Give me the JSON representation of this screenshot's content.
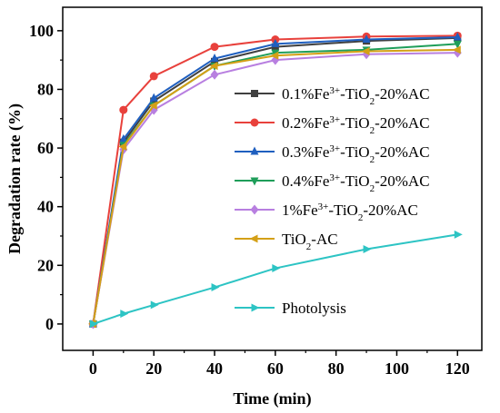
{
  "chart_data": {
    "type": "line",
    "xlabel": "Time (min)",
    "ylabel": "Degradation rate (%)",
    "xlim": [
      -10,
      128
    ],
    "ylim": [
      -9,
      108
    ],
    "xticks": [
      0,
      20,
      40,
      60,
      80,
      100,
      120
    ],
    "yticks": [
      0,
      20,
      40,
      60,
      80,
      100
    ],
    "x": [
      0,
      10,
      20,
      40,
      60,
      90,
      120
    ],
    "legend_position": "right",
    "series": [
      {
        "name": "0.1%Fe3+-TiO2-20%AC",
        "legend_parts": [
          [
            "0.1%Fe",
            ""
          ],
          [
            "3+",
            "sup"
          ],
          [
            "-TiO",
            ""
          ],
          [
            "2",
            "sub"
          ],
          [
            "-20%AC",
            ""
          ]
        ],
        "color": "#404040",
        "marker": "square",
        "values": [
          0,
          62.0,
          76.0,
          89.5,
          94.5,
          96.5,
          97.5
        ]
      },
      {
        "name": "0.2%Fe3+-TiO2-20%AC",
        "legend_parts": [
          [
            "0.2%Fe",
            ""
          ],
          [
            "3+",
            "sup"
          ],
          [
            "-TiO",
            ""
          ],
          [
            "2",
            "sub"
          ],
          [
            "-20%AC",
            ""
          ]
        ],
        "color": "#e8413c",
        "marker": "circle",
        "values": [
          0,
          73.0,
          84.5,
          94.5,
          97.0,
          98.0,
          98.3
        ]
      },
      {
        "name": "0.3%Fe3+-TiO2-20%AC",
        "legend_parts": [
          [
            "0.3%Fe",
            ""
          ],
          [
            "3+",
            "sup"
          ],
          [
            "-TiO",
            ""
          ],
          [
            "2",
            "sub"
          ],
          [
            "-20%AC",
            ""
          ]
        ],
        "color": "#1f5fbf",
        "marker": "triangle-up",
        "values": [
          0,
          63.0,
          77.0,
          90.5,
          95.5,
          97.0,
          97.8
        ]
      },
      {
        "name": "0.4%Fe3+-TiO2-20%AC",
        "legend_parts": [
          [
            "0.4%Fe",
            ""
          ],
          [
            "3+",
            "sup"
          ],
          [
            "-TiO",
            ""
          ],
          [
            "2",
            "sub"
          ],
          [
            "-20%AC",
            ""
          ]
        ],
        "color": "#1f9e5a",
        "marker": "triangle-down",
        "values": [
          0,
          61.0,
          74.5,
          88.0,
          92.5,
          93.5,
          95.5
        ]
      },
      {
        "name": "1%Fe3+-TiO2-20%AC",
        "legend_parts": [
          [
            "1%Fe",
            ""
          ],
          [
            "3+",
            "sup"
          ],
          [
            "-TiO",
            ""
          ],
          [
            "2",
            "sub"
          ],
          [
            "-20%AC",
            ""
          ]
        ],
        "color": "#b87fe0",
        "marker": "diamond",
        "values": [
          0,
          59.5,
          73.0,
          85.0,
          90.0,
          92.0,
          92.5
        ]
      },
      {
        "name": "TiO2-AC",
        "legend_parts": [
          [
            "TiO",
            ""
          ],
          [
            "2",
            "sub"
          ],
          [
            "-AC",
            ""
          ]
        ],
        "color": "#d4a017",
        "marker": "triangle-left",
        "values": [
          0,
          60.5,
          74.5,
          88.0,
          91.5,
          93.0,
          93.5
        ]
      },
      {
        "name": "Photolysis",
        "legend_parts": [
          [
            "Photolysis",
            ""
          ]
        ],
        "color": "#2dc4c4",
        "marker": "triangle-right",
        "values": [
          0,
          3.5,
          6.5,
          12.5,
          19.0,
          25.5,
          30.5
        ]
      }
    ]
  }
}
